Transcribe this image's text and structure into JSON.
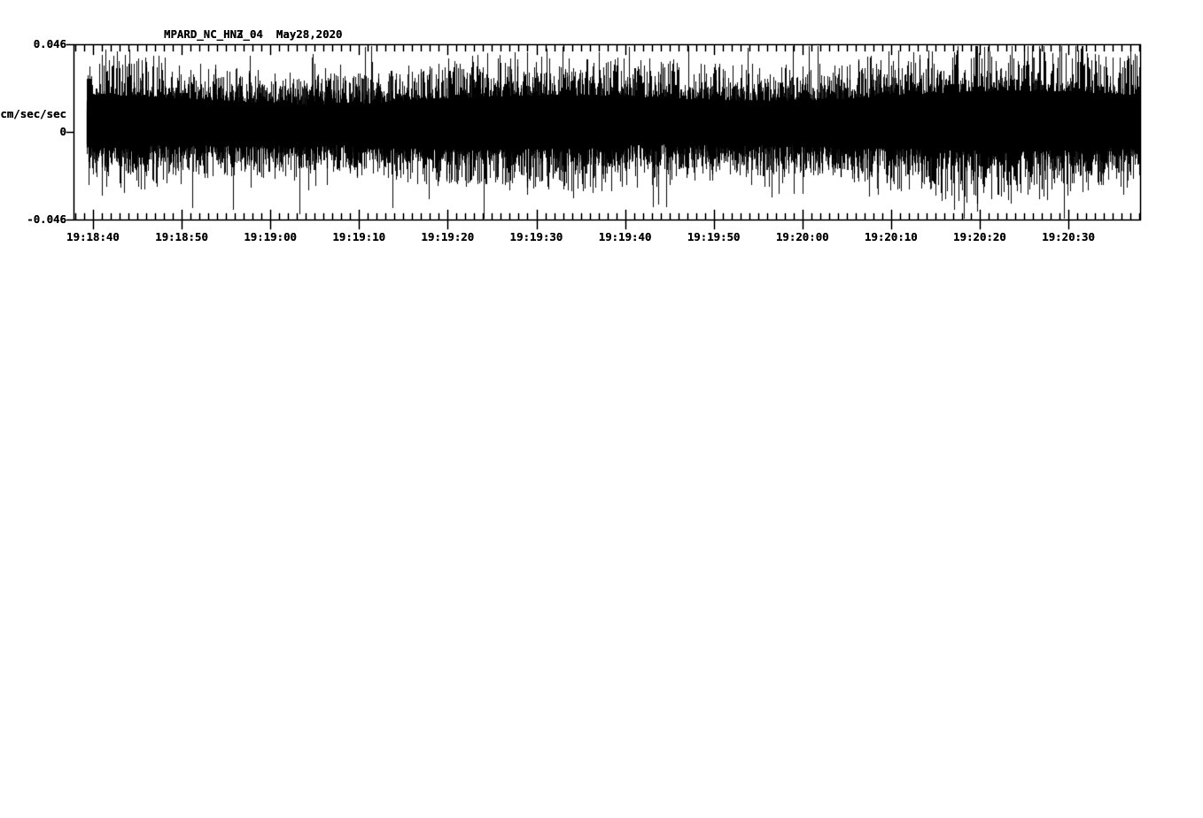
{
  "colors": {
    "foreground": "#000000",
    "background": "#ffffff"
  },
  "axis": {
    "x_minor_interval_s": 1,
    "x_major_interval_s": 10,
    "x_first_label": "19:18:40",
    "x_last_label": "19:20:30"
  },
  "chart_data": [
    {
      "type": "line",
      "title_id": "MPARD_NC_HN3_04",
      "title_date": "May28,2020",
      "station": "MPARD",
      "network": "NC",
      "channel": "HN3",
      "location": "04",
      "ylabel": "cm/sec/sec",
      "yticklabels": [
        "0.046",
        "0",
        "-0.046"
      ],
      "yticks": [
        0.046,
        0,
        -0.046
      ],
      "ylim": [
        -0.046,
        0.046
      ],
      "xticklabels": [
        "19:18:40",
        "19:18:50",
        "19:19:00",
        "19:19:10",
        "19:19:20",
        "19:19:30",
        "19:19:40",
        "19:19:50",
        "19:20:00",
        "19:20:10",
        "19:20:20",
        "19:20:30"
      ],
      "waveform": {
        "kind": "continuous ambient noise",
        "seed": 13,
        "mean_units": 0.006,
        "core_amp_units": 0.0242,
        "min_fill": 0.5,
        "variance": 0.95,
        "spike_probability": 0.025,
        "spike_extra": 0.55,
        "start_s": -0.7,
        "end_s": 118.0
      }
    },
    {
      "type": "line",
      "title_id": "MPARD_NC_HN2_04",
      "title_date": "May28,2020",
      "station": "MPARD",
      "network": "NC",
      "channel": "HN2",
      "location": "04",
      "ylabel": "cm/sec/sec",
      "yticklabels": [
        "0.046",
        "0",
        "-0.046"
      ],
      "yticks": [
        0.046,
        0,
        -0.046
      ],
      "ylim": [
        -0.046,
        0.046
      ],
      "xticklabels": [
        "19:18:40",
        "19:18:50",
        "19:19:00",
        "19:19:10",
        "19:19:20",
        "19:19:30",
        "19:19:40",
        "19:19:50",
        "19:20:00",
        "19:20:10",
        "19:20:20",
        "19:20:30"
      ],
      "waveform": {
        "kind": "continuous ambient noise",
        "seed": 42,
        "mean_units": 0.0009,
        "core_amp_units": 0.0149,
        "min_fill": 0.45,
        "variance": 1.0,
        "spike_probability": 0.06,
        "spike_extra": 0.8,
        "start_s": -0.7,
        "end_s": 118.0
      }
    },
    {
      "type": "line",
      "title_id": "MPARD_NC_HNZ_04",
      "title_date": "May28,2020",
      "station": "MPARD",
      "network": "NC",
      "channel": "HNZ",
      "location": "04",
      "ylabel": "cm/sec/sec",
      "yticklabels": [
        "0.046",
        "0",
        "-0.046"
      ],
      "yticks": [
        0.046,
        0,
        -0.046
      ],
      "ylim": [
        -0.046,
        0.046
      ],
      "xticklabels": [
        "19:18:40",
        "19:18:50",
        "19:19:00",
        "19:19:10",
        "19:19:20",
        "19:19:30",
        "19:19:40",
        "19:19:50",
        "19:20:00",
        "19:20:10",
        "19:20:20",
        "19:20:30"
      ],
      "waveform": {
        "kind": "continuous ambient noise",
        "seed": 77,
        "mean_units": 0.0037,
        "core_amp_units": 0.0167,
        "min_fill": 0.6,
        "variance": 0.9,
        "spike_probability": 0.05,
        "spike_extra": 0.6,
        "start_s": -0.7,
        "end_s": 118.0
      }
    }
  ]
}
